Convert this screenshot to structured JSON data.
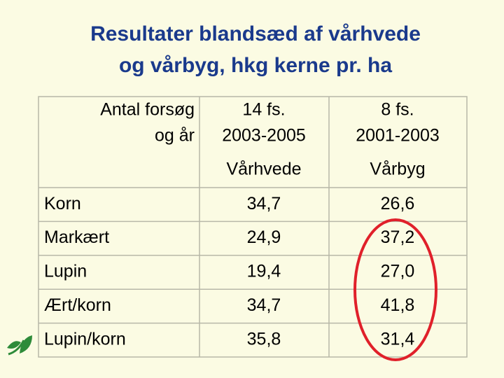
{
  "title": [
    "Resultater blandsæd af vårhvede",
    "og vårbyg, hkg kerne pr. ha"
  ],
  "table": {
    "header": [
      [
        "Antal forsøg",
        "og år"
      ],
      [
        "14 fs.",
        "2003-2005",
        "Vårhvede"
      ],
      [
        "8 fs.",
        "2001-2003",
        "Vårbyg"
      ]
    ],
    "rows": [
      [
        "Korn",
        "34,7",
        "26,6"
      ],
      [
        "Markært",
        "24,9",
        "37,2"
      ],
      [
        "Lupin",
        "19,4",
        "27,0"
      ],
      [
        "Ært/korn",
        "34,7",
        "41,8"
      ],
      [
        "Lupin/korn",
        "35,8",
        "31,4"
      ]
    ]
  }
}
